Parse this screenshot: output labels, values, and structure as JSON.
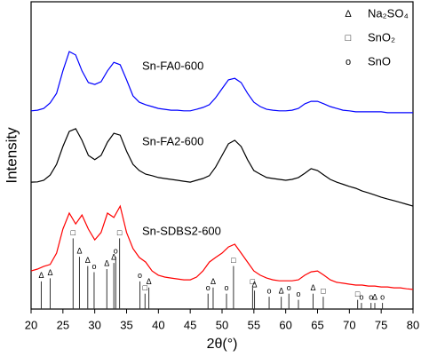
{
  "chart_data": {
    "type": "line",
    "x_label": "2θ(°)",
    "y_label": "Intensity",
    "xlim": [
      20,
      80
    ],
    "xticks": [
      20,
      25,
      30,
      35,
      40,
      45,
      50,
      55,
      60,
      65,
      70,
      75,
      80
    ],
    "ylim": [
      0,
      100
    ],
    "x": [
      20,
      21,
      22,
      23,
      24,
      25,
      26,
      27,
      28,
      29,
      30,
      31,
      32,
      33,
      34,
      35,
      36,
      37,
      38,
      39,
      40,
      41,
      42,
      43,
      44,
      45,
      46,
      47,
      48,
      49,
      50,
      51,
      52,
      53,
      54,
      55,
      56,
      57,
      58,
      59,
      60,
      61,
      62,
      63,
      64,
      65,
      66,
      67,
      68,
      69,
      70,
      71,
      72,
      73,
      74,
      75,
      76,
      77,
      78,
      79,
      80
    ],
    "series": [
      {
        "name": "Sn-FA0-600",
        "color": "#0000ff",
        "values": [
          64.5,
          64.7,
          65.3,
          67.1,
          70.2,
          77.5,
          83.8,
          82.7,
          77.5,
          73.7,
          73.1,
          74.0,
          77.5,
          80.3,
          79.5,
          74.6,
          69.4,
          67.3,
          66.5,
          65.9,
          65.3,
          65.0,
          64.7,
          64.7,
          64.5,
          64.5,
          65.0,
          65.6,
          66.5,
          68.8,
          71.7,
          74.6,
          75.1,
          73.7,
          70.2,
          67.3,
          65.9,
          65.0,
          64.7,
          64.5,
          64.5,
          64.7,
          65.3,
          66.8,
          67.6,
          67.6,
          66.8,
          65.9,
          65.3,
          64.7,
          64.5,
          64.2,
          64.2,
          64.2,
          64.2,
          64.2,
          63.9,
          63.9,
          63.9,
          63.9,
          63.9
        ]
      },
      {
        "name": "Sn-FA2-600",
        "color": "#000000",
        "values": [
          41.3,
          41.4,
          41.9,
          43.6,
          47.1,
          52.9,
          57.8,
          58.7,
          54.9,
          50.0,
          48.6,
          50.0,
          54.3,
          57.2,
          56.6,
          51.4,
          47.1,
          45.1,
          43.9,
          43.4,
          42.8,
          42.5,
          42.2,
          41.9,
          41.6,
          41.3,
          41.9,
          42.5,
          43.4,
          46.2,
          50.0,
          53.8,
          54.9,
          52.9,
          48.6,
          45.1,
          43.9,
          42.8,
          42.5,
          42.2,
          41.9,
          42.2,
          42.8,
          44.2,
          45.7,
          45.1,
          43.6,
          42.2,
          41.3,
          40.6,
          39.9,
          39.3,
          38.4,
          37.8,
          37.1,
          36.4,
          35.8,
          35.3,
          34.7,
          34.1,
          33.5
        ]
      },
      {
        "name": "Sn-SDBS2-600",
        "color": "#ff0000",
        "values": [
          12.4,
          13.0,
          13.9,
          14.5,
          18.2,
          26.0,
          31.2,
          27.7,
          30.6,
          26.0,
          22.5,
          24.9,
          31.2,
          29.8,
          33.5,
          24.9,
          19.7,
          16.8,
          15.3,
          12.4,
          11.0,
          10.4,
          10.1,
          9.8,
          9.5,
          9.5,
          10.4,
          12.4,
          15.3,
          16.8,
          18.2,
          20.2,
          21.1,
          18.2,
          15.3,
          12.4,
          11.0,
          10.1,
          9.5,
          9.2,
          9.2,
          9.2,
          9.5,
          11.0,
          12.1,
          12.4,
          11.0,
          9.5,
          8.7,
          8.4,
          8.1,
          7.8,
          7.8,
          7.5,
          7.5,
          7.2,
          7.2,
          6.9,
          6.9,
          6.6,
          6.4
        ]
      }
    ],
    "references": [
      {
        "name": "Na₂SO₄",
        "symbol": "Δ",
        "color": "#333333",
        "x": [
          21.6,
          23.0,
          27.6,
          28.9,
          31.9,
          33.0,
          38.5,
          48.6,
          55.1,
          59.3,
          64.3,
          74.0
        ],
        "values": [
          9,
          10,
          17,
          14,
          13,
          15,
          7,
          7,
          6,
          4,
          5,
          2
        ]
      },
      {
        "name": "SnO₂",
        "symbol": "□",
        "color": "#333333",
        "x": [
          26.6,
          33.9,
          37.9,
          51.8,
          54.8,
          65.9,
          71.3
        ],
        "values": [
          23,
          23,
          5,
          14,
          7,
          4,
          3
        ]
      },
      {
        "name": "SnO",
        "symbol": "o",
        "color": "#333333",
        "x": [
          29.9,
          33.3,
          37.1,
          47.8,
          50.7,
          57.4,
          60.5,
          62.0,
          71.9,
          73.4,
          75.2
        ],
        "values": [
          12,
          17,
          9,
          5,
          5,
          4,
          5,
          3,
          2,
          2,
          2
        ]
      }
    ]
  }
}
